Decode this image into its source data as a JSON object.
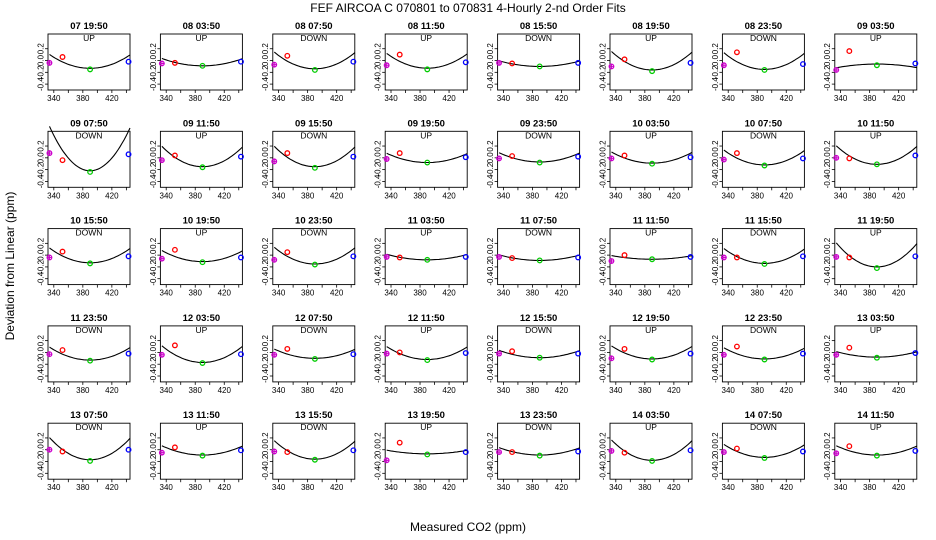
{
  "chart_data": {
    "type": "scatter",
    "title": "FEF   AIRCOA C   070801 to 070831   4-Hourly 2-nd Order Fits",
    "xlabel": "Measured CO2 (ppm)",
    "ylabel": "Deviation from Linear (ppm)",
    "xlim": [
      332,
      445
    ],
    "ylim": [
      -0.5,
      0.45
    ],
    "xticks": [
      "340",
      "380",
      "420"
    ],
    "xtick_values": [
      340,
      380,
      420
    ],
    "xticks_minor": [
      360,
      400,
      440
    ],
    "yticks": [
      "-0.4",
      "-0.2",
      "0.0",
      "0.2"
    ],
    "ytick_values": [
      -0.4,
      -0.2,
      0.0,
      0.2
    ],
    "point_x": [
      334,
      352,
      390,
      443
    ],
    "point_colors": [
      "#cc00cc",
      "#ff0000",
      "#00cc00",
      "#0000ff"
    ],
    "panels": [
      {
        "label": "07 19:50",
        "dir": "UP",
        "y": [
          -0.04,
          0.06,
          -0.15,
          -0.02
        ],
        "fit": [
          7.5e-05,
          -0.045,
          -0.132
        ]
      },
      {
        "label": "08 03:50",
        "dir": "UP",
        "y": [
          -0.05,
          -0.04,
          -0.09,
          -0.02
        ],
        "fit": [
          4e-05,
          -0.06,
          -0.09
        ]
      },
      {
        "label": "08 07:50",
        "dir": "DOWN",
        "y": [
          -0.07,
          0.08,
          -0.16,
          -0.02
        ],
        "fit": [
          9e-05,
          -0.045,
          -0.14
        ]
      },
      {
        "label": "08 11:50",
        "dir": "UP",
        "y": [
          -0.08,
          0.1,
          -0.15,
          -0.03
        ],
        "fit": [
          8e-05,
          -0.05,
          -0.13
        ]
      },
      {
        "label": "08 15:50",
        "dir": "DOWN",
        "y": [
          -0.04,
          -0.05,
          -0.1,
          -0.04
        ],
        "fit": [
          3e-05,
          -0.06,
          -0.1
        ]
      },
      {
        "label": "08 19:50",
        "dir": "UP",
        "y": [
          -0.1,
          0.02,
          -0.18,
          -0.04
        ],
        "fit": [
          0.0001,
          -0.05,
          -0.16
        ]
      },
      {
        "label": "08 23:50",
        "dir": "DOWN",
        "y": [
          -0.08,
          0.14,
          -0.16,
          -0.06
        ],
        "fit": [
          9e-05,
          -0.05,
          -0.15
        ]
      },
      {
        "label": "09 03:50",
        "dir": "UP",
        "y": [
          -0.16,
          0.16,
          -0.08,
          -0.05
        ],
        "fit": [
          -2e-05,
          -0.025,
          -0.06
        ]
      },
      {
        "label": "09 07:50",
        "dir": "DOWN",
        "y": [
          0.08,
          -0.04,
          -0.24,
          0.06
        ],
        "fit": [
          0.00024,
          -0.04,
          -0.22
        ]
      },
      {
        "label": "09 11:50",
        "dir": "UP",
        "y": [
          -0.04,
          0.04,
          -0.16,
          0.02
        ],
        "fit": [
          0.00011,
          -0.05,
          -0.15
        ]
      },
      {
        "label": "09 15:50",
        "dir": "DOWN",
        "y": [
          -0.06,
          0.08,
          -0.17,
          0.02
        ],
        "fit": [
          0.00011,
          -0.05,
          -0.15
        ]
      },
      {
        "label": "09 19:50",
        "dir": "UP",
        "y": [
          -0.02,
          0.08,
          -0.08,
          0.01
        ],
        "fit": [
          5e-05,
          -0.05,
          -0.08
        ]
      },
      {
        "label": "09 23:50",
        "dir": "DOWN",
        "y": [
          -0.01,
          0.03,
          -0.08,
          0.02
        ],
        "fit": [
          5e-05,
          -0.05,
          -0.07
        ]
      },
      {
        "label": "10 03:50",
        "dir": "UP",
        "y": [
          -0.01,
          0.04,
          -0.1,
          0.01
        ],
        "fit": [
          6e-05,
          -0.05,
          -0.09
        ]
      },
      {
        "label": "10 07:50",
        "dir": "DOWN",
        "y": [
          -0.03,
          0.08,
          -0.13,
          -0.01
        ],
        "fit": [
          8e-05,
          -0.05,
          -0.12
        ]
      },
      {
        "label": "10 11:50",
        "dir": "UP",
        "y": [
          0.0,
          -0.01,
          -0.11,
          0.04
        ],
        "fit": [
          0.0001,
          -0.045,
          -0.11
        ]
      },
      {
        "label": "10 15:50",
        "dir": "DOWN",
        "y": [
          -0.04,
          0.06,
          -0.14,
          -0.02
        ],
        "fit": [
          8e-05,
          -0.05,
          -0.13
        ]
      },
      {
        "label": "10 19:50",
        "dir": "UP",
        "y": [
          -0.06,
          0.09,
          -0.12,
          -0.04
        ],
        "fit": [
          6e-05,
          -0.055,
          -0.11
        ]
      },
      {
        "label": "10 23:50",
        "dir": "DOWN",
        "y": [
          -0.08,
          0.05,
          -0.16,
          -0.02
        ],
        "fit": [
          9e-05,
          -0.05,
          -0.15
        ]
      },
      {
        "label": "11 03:50",
        "dir": "UP",
        "y": [
          -0.03,
          -0.04,
          -0.08,
          -0.03
        ],
        "fit": [
          3e-05,
          -0.06,
          -0.08
        ]
      },
      {
        "label": "11 07:50",
        "dir": "DOWN",
        "y": [
          -0.03,
          -0.05,
          -0.09,
          -0.04
        ],
        "fit": [
          3e-05,
          -0.06,
          -0.09
        ]
      },
      {
        "label": "11 11:50",
        "dir": "UP",
        "y": [
          -0.1,
          0.0,
          -0.07,
          -0.03
        ],
        "fit": [
          2e-05,
          -0.05,
          -0.07
        ]
      },
      {
        "label": "11 15:50",
        "dir": "DOWN",
        "y": [
          -0.04,
          -0.04,
          -0.15,
          -0.02
        ],
        "fit": [
          8e-05,
          -0.05,
          -0.14
        ]
      },
      {
        "label": "11 19:50",
        "dir": "UP",
        "y": [
          -0.03,
          -0.04,
          -0.22,
          -0.02
        ],
        "fit": [
          0.00013,
          -0.05,
          -0.2
        ]
      },
      {
        "label": "11 23:50",
        "dir": "DOWN",
        "y": [
          -0.03,
          0.04,
          -0.14,
          -0.02
        ],
        "fit": [
          7e-05,
          -0.05,
          -0.13
        ]
      },
      {
        "label": "12 03:50",
        "dir": "UP",
        "y": [
          -0.04,
          0.12,
          -0.18,
          -0.03
        ],
        "fit": [
          9e-05,
          -0.05,
          -0.17
        ]
      },
      {
        "label": "12 07:50",
        "dir": "DOWN",
        "y": [
          -0.04,
          0.06,
          -0.11,
          -0.03
        ],
        "fit": [
          5e-05,
          -0.05,
          -0.1
        ]
      },
      {
        "label": "12 11:50",
        "dir": "UP",
        "y": [
          -0.02,
          0.0,
          -0.13,
          -0.01
        ],
        "fit": [
          7e-05,
          -0.05,
          -0.12
        ]
      },
      {
        "label": "12 15:50",
        "dir": "DOWN",
        "y": [
          -0.02,
          0.02,
          -0.09,
          -0.02
        ],
        "fit": [
          4e-05,
          -0.06,
          -0.09
        ]
      },
      {
        "label": "12 19:50",
        "dir": "UP",
        "y": [
          -0.1,
          0.06,
          -0.12,
          -0.02
        ],
        "fit": [
          7e-05,
          -0.05,
          -0.11
        ]
      },
      {
        "label": "12 23:50",
        "dir": "DOWN",
        "y": [
          -0.04,
          0.1,
          -0.12,
          -0.02
        ],
        "fit": [
          6e-05,
          -0.05,
          -0.11
        ]
      },
      {
        "label": "13 03:50",
        "dir": "UP",
        "y": [
          -0.04,
          0.08,
          -0.09,
          -0.01
        ],
        "fit": [
          3e-05,
          -0.05,
          -0.08
        ]
      },
      {
        "label": "13 07:50",
        "dir": "DOWN",
        "y": [
          0.0,
          -0.03,
          -0.19,
          0.0
        ],
        "fit": [
          0.00012,
          -0.04,
          -0.17
        ]
      },
      {
        "label": "13 11:50",
        "dir": "UP",
        "y": [
          -0.05,
          0.04,
          -0.1,
          -0.01
        ],
        "fit": [
          5e-05,
          -0.05,
          -0.09
        ]
      },
      {
        "label": "13 15:50",
        "dir": "DOWN",
        "y": [
          -0.03,
          -0.04,
          -0.17,
          -0.01
        ],
        "fit": [
          0.0001,
          -0.045,
          -0.16
        ]
      },
      {
        "label": "13 19:50",
        "dir": "UP",
        "y": [
          -0.18,
          0.12,
          -0.08,
          -0.04
        ],
        "fit": [
          2e-05,
          -0.05,
          -0.07
        ]
      },
      {
        "label": "13 23:50",
        "dir": "DOWN",
        "y": [
          -0.04,
          -0.04,
          -0.1,
          -0.03
        ],
        "fit": [
          4e-05,
          -0.055,
          -0.09
        ]
      },
      {
        "label": "14 03:50",
        "dir": "UP",
        "y": [
          -0.02,
          -0.05,
          -0.19,
          -0.01
        ],
        "fit": [
          0.00011,
          -0.045,
          -0.18
        ]
      },
      {
        "label": "14 07:50",
        "dir": "DOWN",
        "y": [
          -0.04,
          0.02,
          -0.14,
          -0.03
        ],
        "fit": [
          7e-05,
          -0.05,
          -0.13
        ]
      },
      {
        "label": "14 11:50",
        "dir": "UP",
        "y": [
          -0.06,
          0.06,
          -0.1,
          -0.02
        ],
        "fit": [
          5e-05,
          -0.05,
          -0.09
        ]
      }
    ]
  }
}
